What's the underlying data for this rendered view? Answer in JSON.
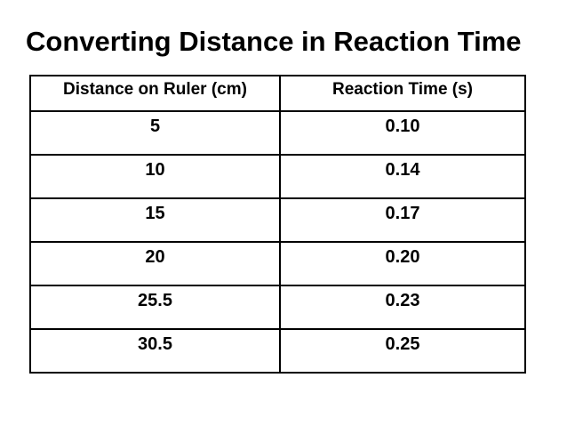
{
  "slide": {
    "title": "Converting Distance in Reaction Time"
  },
  "colors": {
    "background": "#ffffff",
    "text": "#000000",
    "table_border": "#000000"
  },
  "table": {
    "headers": [
      "Distance on Ruler (cm)",
      "Reaction Time (s)"
    ],
    "rows": [
      [
        "5",
        "0.10"
      ],
      [
        "10",
        "0.14"
      ],
      [
        "15",
        "0.17"
      ],
      [
        "20",
        "0.20"
      ],
      [
        "25.5",
        "0.23"
      ],
      [
        "30.5",
        "0.25"
      ]
    ]
  }
}
